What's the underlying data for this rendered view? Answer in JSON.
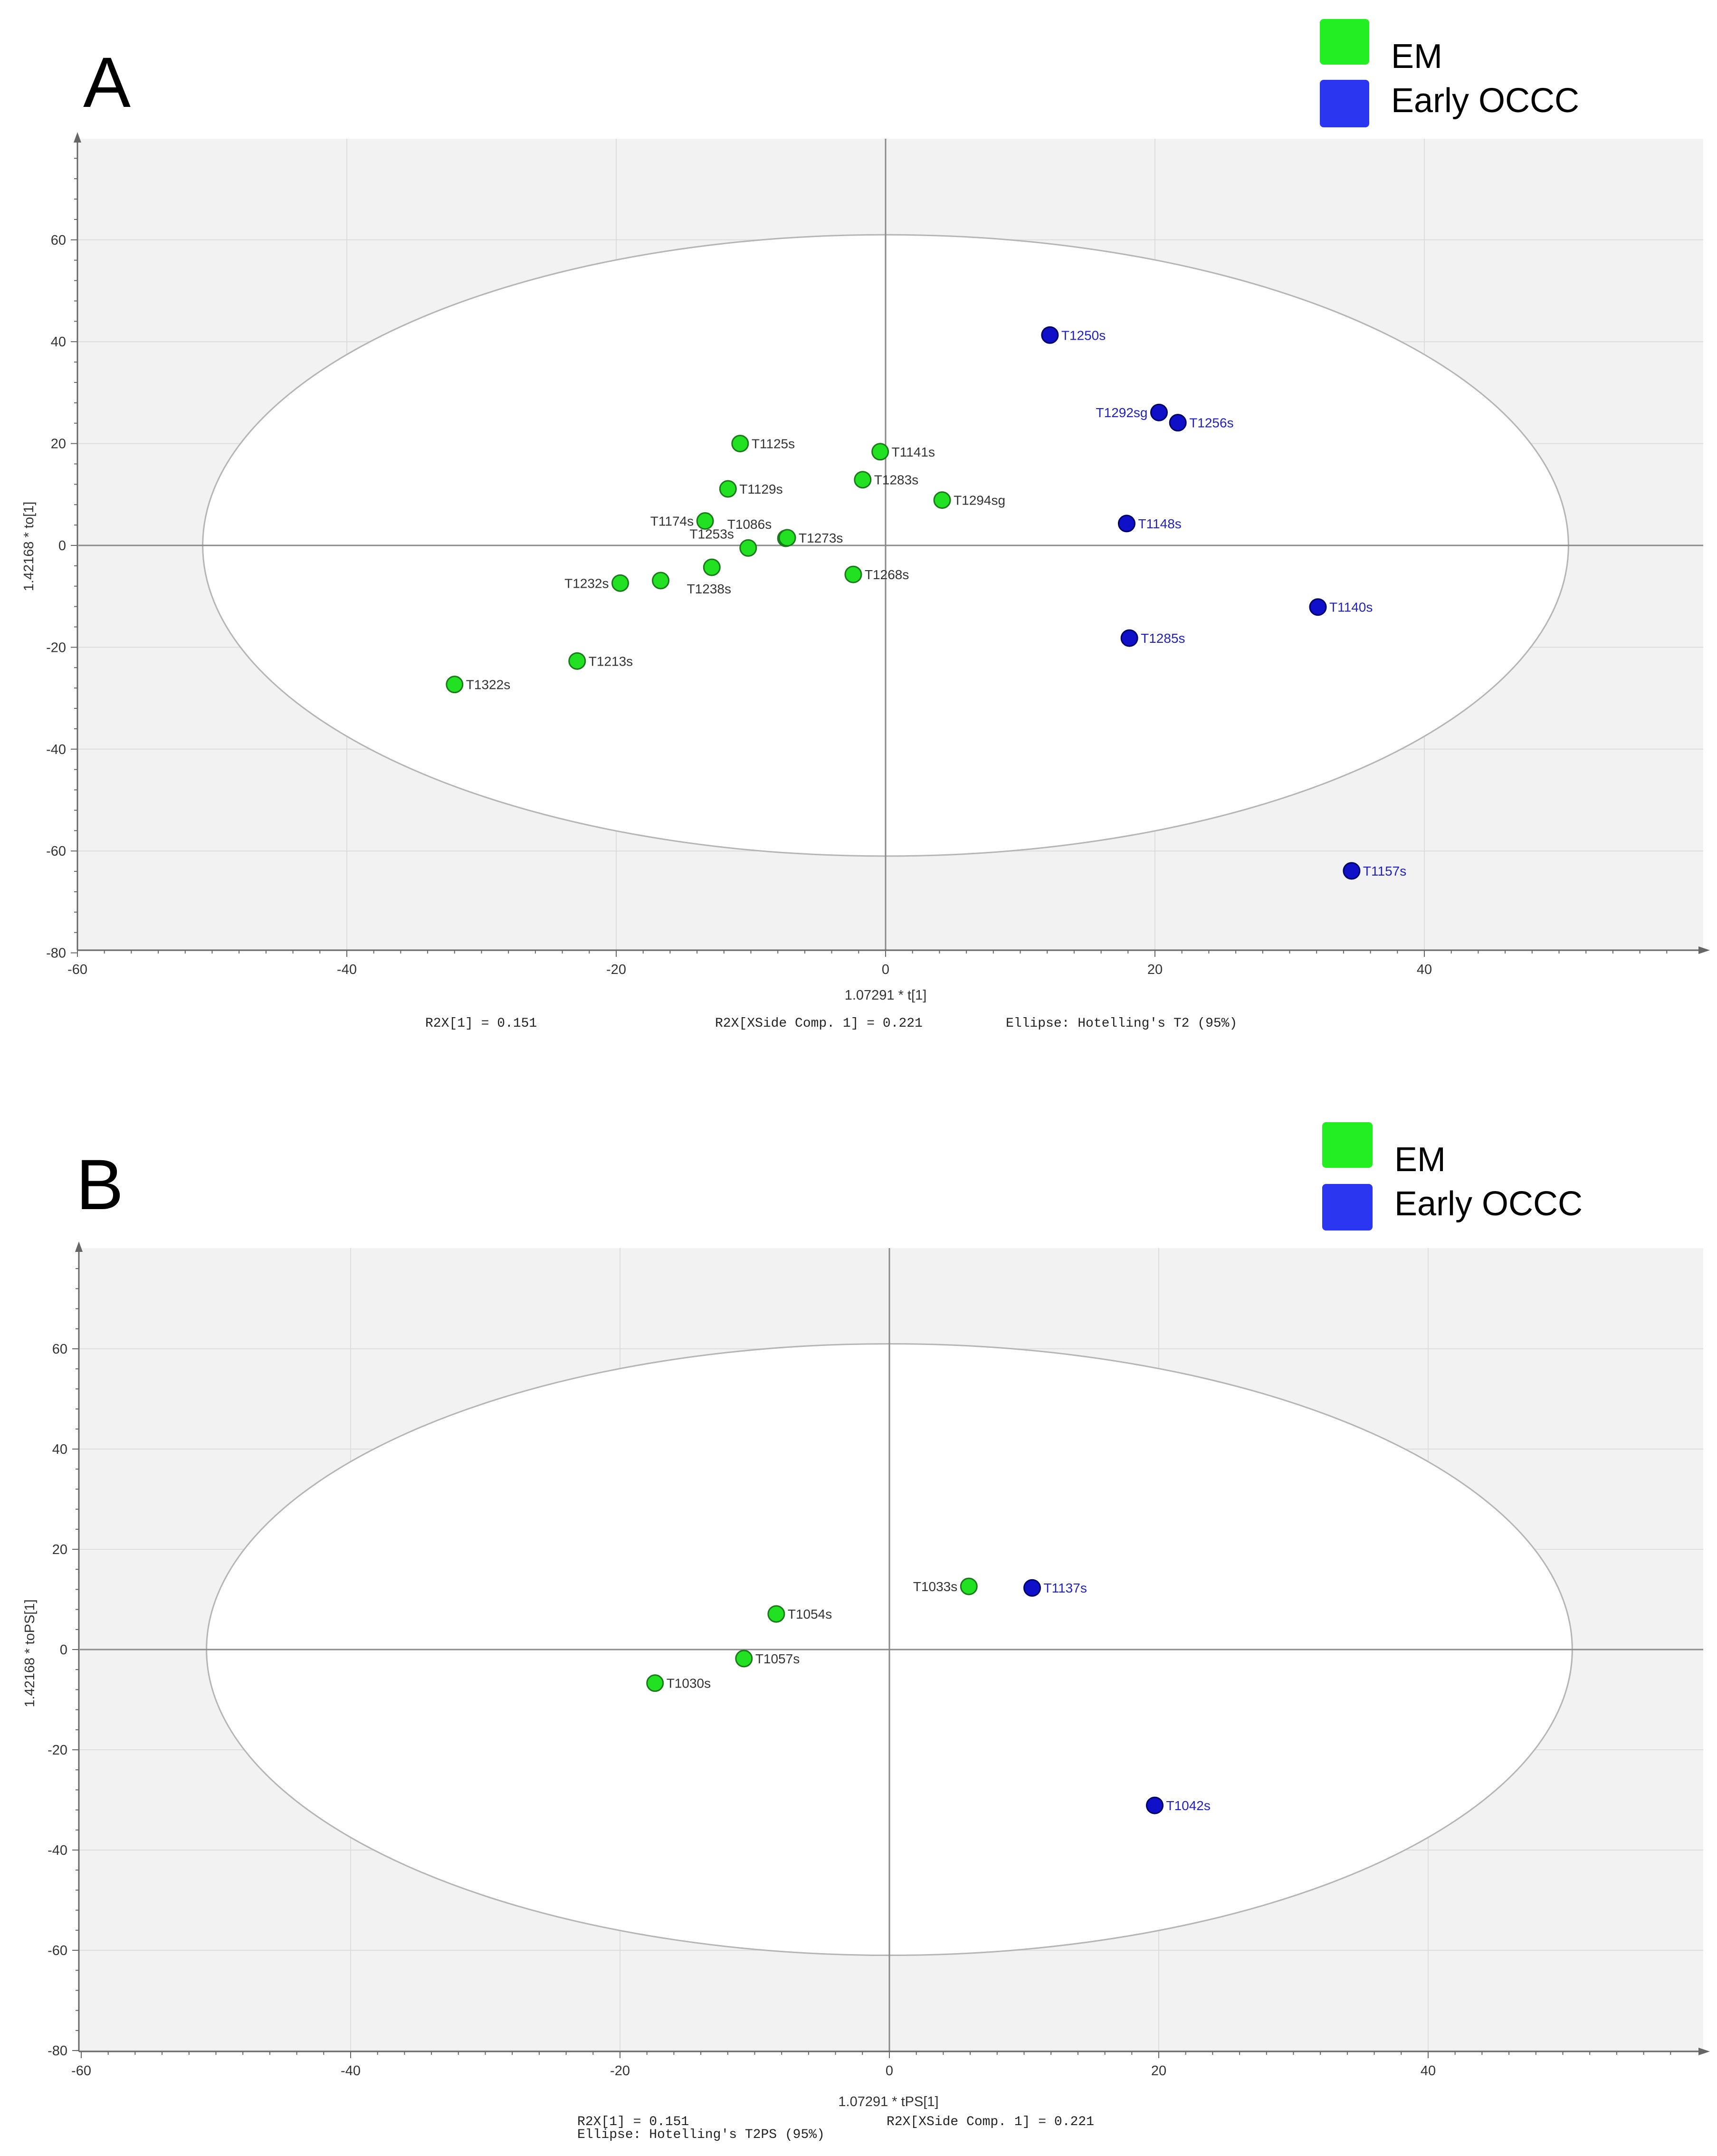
{
  "colors": {
    "em": "#22e022",
    "em_stroke": "#1a7a1a",
    "occc": "#1010c8",
    "occc_stroke": "#00006a",
    "occc_label": "#2222bb",
    "em_label": "#333333",
    "legend_em": "#22ee22",
    "legend_occc": "#2a36f0",
    "plot_bg": "#f2f2f2"
  },
  "chart_data": [
    {
      "type": "scatter",
      "panel_letter": "A",
      "legend": [
        {
          "name": "EM",
          "color_key": "legend_em"
        },
        {
          "name": "Early OCCC",
          "color_key": "legend_occc"
        }
      ],
      "xlabel": "1.07291 * t[1]",
      "ylabel": "1.42168 * to[1]",
      "xlim": [
        -60,
        60
      ],
      "ylim": [
        -80,
        80
      ],
      "xticks": [
        -60,
        -40,
        -20,
        0,
        20,
        40
      ],
      "yticks": [
        60,
        40,
        20,
        0,
        -20,
        -40,
        -60,
        -80
      ],
      "ellipse": {
        "rx": 50.7,
        "ry": 61
      },
      "footer_lines": [
        [
          "R2X[1] = 0.151",
          "R2X[XSide Comp. 1] = 0.221",
          "Ellipse: Hotelling's T2 (95%)"
        ]
      ],
      "series": [
        {
          "name": "EM",
          "points": [
            {
              "label": "T1125s",
              "x": -10.8,
              "y": 20,
              "pos": "right"
            },
            {
              "label": "T1141s",
              "x": -0.4,
              "y": 18.4,
              "pos": "right"
            },
            {
              "label": "T1283s",
              "x": -1.7,
              "y": 12.9,
              "pos": "right"
            },
            {
              "label": "T1129s",
              "x": -11.7,
              "y": 11.1,
              "pos": "right"
            },
            {
              "label": "T1294sg",
              "x": 4.2,
              "y": 8.9,
              "pos": "right"
            },
            {
              "label": "T1174s",
              "x": -13.4,
              "y": 4.8,
              "pos": "left"
            },
            {
              "label": "T1086s",
              "x": -7.4,
              "y": 1.4,
              "pos": "upleft"
            },
            {
              "label": "T1273s",
              "x": -7.3,
              "y": 1.5,
              "pos": "right"
            },
            {
              "label": "T1253s",
              "x": -10.2,
              "y": -0.5,
              "pos": "upleft"
            },
            {
              "label": "T1238s",
              "x": -12.9,
              "y": -4.3,
              "pos": "below"
            },
            {
              "label": "T1268s",
              "x": -2.4,
              "y": -5.7,
              "pos": "right"
            },
            {
              "label": "T1232s",
              "x": -19.7,
              "y": -7.4,
              "pos": "left"
            },
            {
              "label": "",
              "x": -16.7,
              "y": -6.9,
              "pos": "none"
            },
            {
              "label": "T1213s",
              "x": -22.9,
              "y": -22.7,
              "pos": "right"
            },
            {
              "label": "T1322s",
              "x": -32,
              "y": -27.3,
              "pos": "right"
            }
          ]
        },
        {
          "name": "Early OCCC",
          "points": [
            {
              "label": "T1250s",
              "x": 12.2,
              "y": 41.3,
              "pos": "right"
            },
            {
              "label": "T1292sg",
              "x": 20.3,
              "y": 26.1,
              "pos": "left"
            },
            {
              "label": "T1256s",
              "x": 21.7,
              "y": 24.1,
              "pos": "right"
            },
            {
              "label": "T1148s",
              "x": 17.9,
              "y": 4.3,
              "pos": "right"
            },
            {
              "label": "T1140s",
              "x": 32.1,
              "y": -12.1,
              "pos": "right"
            },
            {
              "label": "T1285s",
              "x": 18.1,
              "y": -18.2,
              "pos": "right"
            },
            {
              "label": "T1157s",
              "x": 34.6,
              "y": -63.9,
              "pos": "right"
            }
          ]
        }
      ]
    },
    {
      "type": "scatter",
      "panel_letter": "B",
      "legend": [
        {
          "name": "EM",
          "color_key": "legend_em"
        },
        {
          "name": "Early OCCC",
          "color_key": "legend_occc"
        }
      ],
      "xlabel": "1.07291 * tPS[1]",
      "ylabel": "1.42168 * toPS[1]",
      "xlim": [
        -60,
        60
      ],
      "ylim": [
        -80,
        80
      ],
      "xticks": [
        -60,
        -40,
        -20,
        0,
        20,
        40
      ],
      "yticks": [
        60,
        40,
        20,
        0,
        -20,
        -40,
        -60,
        -80
      ],
      "ellipse": {
        "rx": 50.7,
        "ry": 61
      },
      "footer_lines": [
        [
          "R2X[1] = 0.151",
          "R2X[XSide Comp. 1] = 0.221"
        ],
        [
          "Ellipse: Hotelling's T2PS (95%)"
        ]
      ],
      "series": [
        {
          "name": "EM",
          "points": [
            {
              "label": "T1033s",
              "x": 5.9,
              "y": 12.6,
              "pos": "left"
            },
            {
              "label": "T1054s",
              "x": -8.4,
              "y": 7.1,
              "pos": "right"
            },
            {
              "label": "T1057s",
              "x": -10.8,
              "y": -1.8,
              "pos": "right"
            },
            {
              "label": "T1030s",
              "x": -17.4,
              "y": -6.7,
              "pos": "right"
            }
          ]
        },
        {
          "name": "Early OCCC",
          "points": [
            {
              "label": "T1137s",
              "x": 10.6,
              "y": 12.3,
              "pos": "right"
            },
            {
              "label": "T1042s",
              "x": 19.7,
              "y": -31.1,
              "pos": "right"
            }
          ]
        }
      ]
    }
  ]
}
